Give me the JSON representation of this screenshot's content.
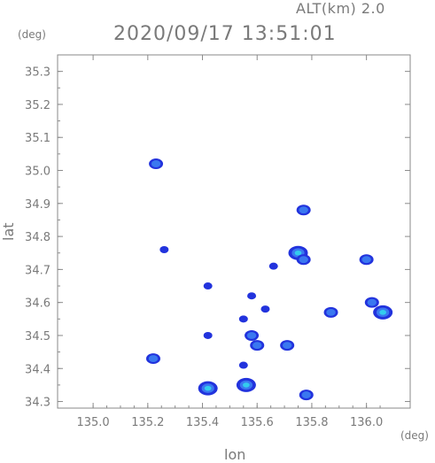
{
  "header": {
    "altitude_label": "ALT(km)  2.0",
    "timestamp": "2020/09/17 13:51:01"
  },
  "axes": {
    "x_unit": "(deg)",
    "y_unit": "(deg)",
    "x_label": "lon",
    "y_label": "lat"
  },
  "colors": {
    "axis": "#8a8a8a",
    "echo_weak": "#2233dd",
    "echo_medium": "#3a78f0",
    "echo_strong": "#33ccee"
  },
  "chart_data": {
    "type": "heatmap",
    "title": "2020/09/17 13:51:01",
    "xlabel": "lon",
    "ylabel": "lat",
    "xlim": [
      134.87,
      136.16
    ],
    "ylim": [
      34.28,
      35.35
    ],
    "x_ticks": [
      135.0,
      135.2,
      135.4,
      135.6,
      135.8,
      136.0
    ],
    "x_tick_labels": [
      "135.0",
      "135.2",
      "135.4",
      "135.6",
      "135.8",
      "136.0"
    ],
    "y_ticks": [
      34.3,
      34.4,
      34.5,
      34.6,
      34.7,
      34.8,
      34.9,
      35.0,
      35.1,
      35.2,
      35.3
    ],
    "y_tick_labels": [
      "34.3",
      "34.4",
      "34.5",
      "34.6",
      "34.7",
      "34.8",
      "34.9",
      "35.0",
      "35.1",
      "35.2",
      "35.3"
    ],
    "grid": false,
    "echo_cells": [
      {
        "lon": 135.23,
        "lat": 35.02,
        "intensity": "medium"
      },
      {
        "lon": 135.22,
        "lat": 34.43,
        "intensity": "medium"
      },
      {
        "lon": 135.56,
        "lat": 34.35,
        "intensity": "strong"
      },
      {
        "lon": 135.42,
        "lat": 34.34,
        "intensity": "strong"
      },
      {
        "lon": 135.75,
        "lat": 34.75,
        "intensity": "strong"
      },
      {
        "lon": 135.77,
        "lat": 34.73,
        "intensity": "medium"
      },
      {
        "lon": 135.77,
        "lat": 34.88,
        "intensity": "medium"
      },
      {
        "lon": 135.58,
        "lat": 34.5,
        "intensity": "medium"
      },
      {
        "lon": 135.6,
        "lat": 34.47,
        "intensity": "medium"
      },
      {
        "lon": 135.55,
        "lat": 34.55,
        "intensity": "weak"
      },
      {
        "lon": 135.58,
        "lat": 34.62,
        "intensity": "weak"
      },
      {
        "lon": 135.63,
        "lat": 34.58,
        "intensity": "weak"
      },
      {
        "lon": 135.71,
        "lat": 34.47,
        "intensity": "medium"
      },
      {
        "lon": 136.02,
        "lat": 34.6,
        "intensity": "medium"
      },
      {
        "lon": 136.0,
        "lat": 34.73,
        "intensity": "medium"
      },
      {
        "lon": 136.06,
        "lat": 34.57,
        "intensity": "strong"
      },
      {
        "lon": 135.87,
        "lat": 34.57,
        "intensity": "medium"
      },
      {
        "lon": 135.78,
        "lat": 34.32,
        "intensity": "medium"
      },
      {
        "lon": 135.26,
        "lat": 34.76,
        "intensity": "weak"
      },
      {
        "lon": 135.42,
        "lat": 34.65,
        "intensity": "weak"
      },
      {
        "lon": 135.42,
        "lat": 34.5,
        "intensity": "weak"
      },
      {
        "lon": 135.55,
        "lat": 34.41,
        "intensity": "weak"
      },
      {
        "lon": 135.66,
        "lat": 34.71,
        "intensity": "weak"
      }
    ]
  }
}
